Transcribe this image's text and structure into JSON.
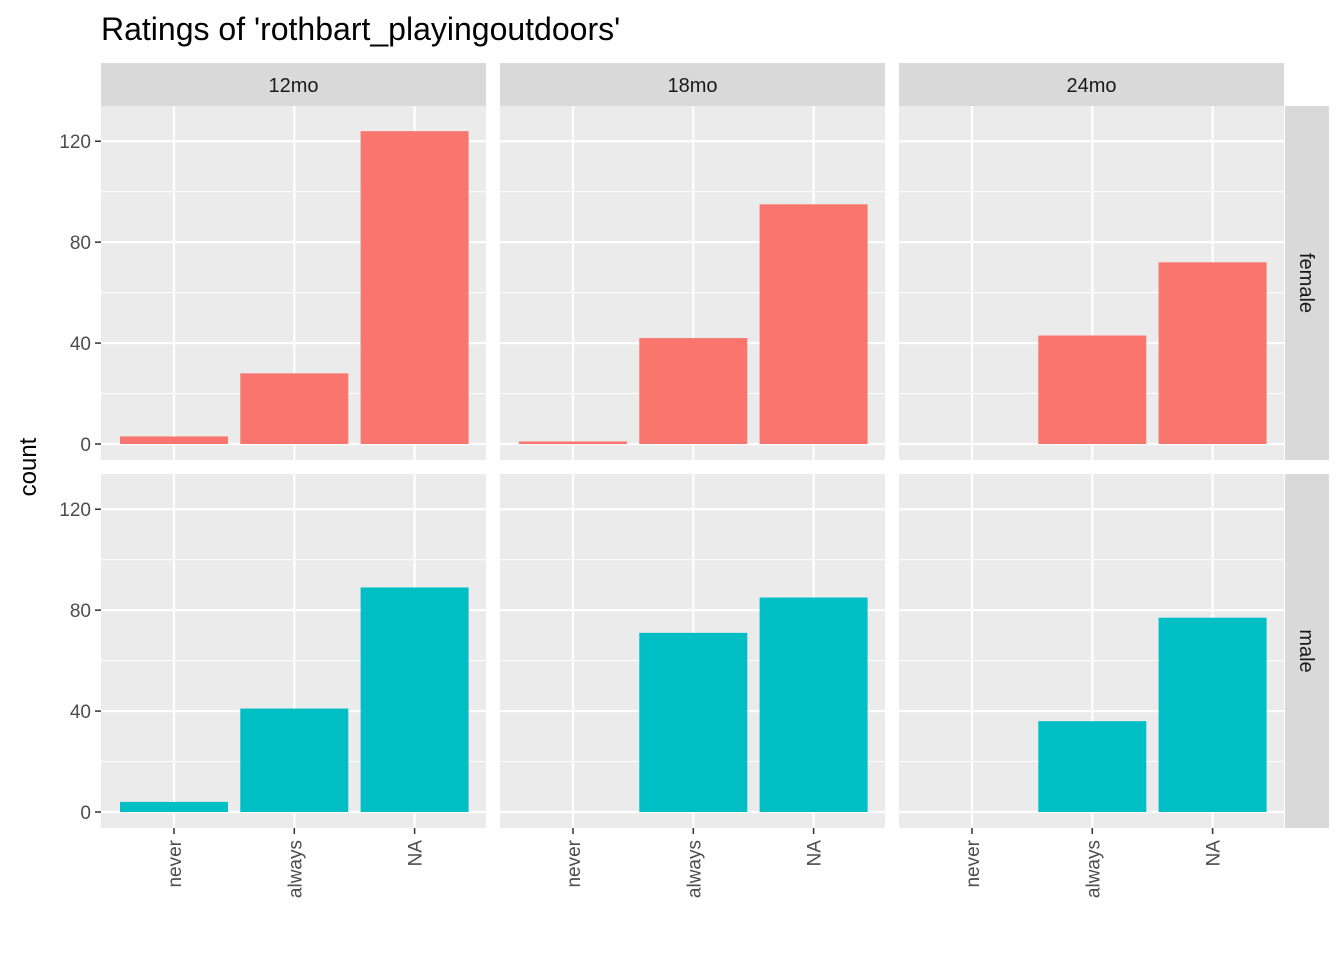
{
  "chart_data": {
    "type": "bar",
    "title": "Ratings of 'rothbart_playingoutdoors'",
    "ylabel": "count",
    "xlabel": "",
    "categories": [
      "never",
      "always",
      "NA"
    ],
    "column_facets": [
      "12mo",
      "18mo",
      "24mo"
    ],
    "row_facets": [
      "female",
      "male"
    ],
    "y_ticks": [
      0,
      40,
      80,
      120
    ],
    "ylim": [
      0,
      130
    ],
    "grid": true,
    "legend": "none",
    "colors": {
      "female": "#F8766D",
      "male": "#00BFC4"
    },
    "panels": [
      {
        "row": "female",
        "col": "12mo",
        "values": [
          3,
          28,
          124
        ]
      },
      {
        "row": "female",
        "col": "18mo",
        "values": [
          1,
          42,
          95
        ]
      },
      {
        "row": "female",
        "col": "24mo",
        "values": [
          0,
          43,
          72
        ]
      },
      {
        "row": "male",
        "col": "12mo",
        "values": [
          4,
          41,
          89
        ]
      },
      {
        "row": "male",
        "col": "18mo",
        "values": [
          0,
          71,
          85
        ]
      },
      {
        "row": "male",
        "col": "24mo",
        "values": [
          0,
          36,
          77
        ]
      }
    ]
  }
}
